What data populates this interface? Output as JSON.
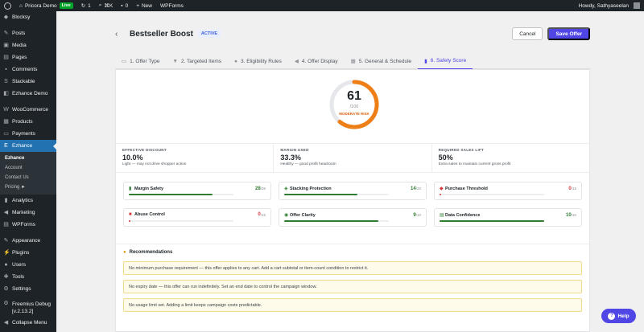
{
  "adminbar": {
    "site_name": "Pricora Demo",
    "live_badge": "Live",
    "updates_count": "1",
    "shortcut": "⌘K",
    "comments_count": "0",
    "new_label": "New",
    "plugin_link": "WPForms",
    "howdy": "Howdy, Sathyaseelan"
  },
  "sidebar": {
    "top": "Blocksy",
    "items1": [
      "Posts",
      "Media",
      "Pages",
      "Comments",
      "Stackable",
      "Ezhance Demo"
    ],
    "items2": [
      "WooCommerce",
      "Products",
      "Payments"
    ],
    "current": "Ezhance",
    "submenu": [
      "Ezhance",
      "Account",
      "Contact Us",
      "Pricing ►"
    ],
    "items3": [
      "Analytics",
      "Marketing",
      "WPForms"
    ],
    "items4": [
      "Appearance",
      "Plugins",
      "Users",
      "Tools",
      "Settings"
    ],
    "freemius": "Freemius Debug [v.2.13.2]",
    "collapse": "Collapse Menu"
  },
  "header": {
    "title": "Bestseller Boost",
    "status": "ACTIVE",
    "cancel_label": "Cancel",
    "save_label": "Save Offer"
  },
  "tabs": [
    "1. Offer Type",
    "2. Targeted Items",
    "3. Eligibility Rules",
    "4. Offer Display",
    "5. General & Schedule",
    "6. Safety Score"
  ],
  "score": {
    "value": "61",
    "of": "/100",
    "fraction": 0.61,
    "risk_label": "MODERATE RISK",
    "colors": {
      "arc": "#ee7f16",
      "track": "#e5e7eb"
    }
  },
  "metrics": [
    {
      "label": "EFFECTIVE DISCOUNT",
      "value": "10.0%",
      "desc": "Light — may not drive shopper action"
    },
    {
      "label": "MARGIN USED",
      "value": "33.3%",
      "desc": "Healthy — good profit headroom"
    },
    {
      "label": "REQUIRED SALES LIFT",
      "value": "50%",
      "desc": "Extra sales to maintain current gross profit"
    }
  ],
  "score_cards": [
    {
      "name": "Margin Safety",
      "value": "28",
      "max": "/35",
      "fraction": 0.8,
      "color": "#2e7d32",
      "icon": "chart-icon"
    },
    {
      "name": "Stacking Protection",
      "value": "14",
      "max": "/20",
      "fraction": 0.7,
      "color": "#2e7d32",
      "icon": "layers-icon"
    },
    {
      "name": "Purchase Threshold",
      "value": "0",
      "max": "/15",
      "fraction": 0.0,
      "color": "#d63638",
      "icon": "tag-icon"
    },
    {
      "name": "Abuse Control",
      "value": "0",
      "max": "/15",
      "fraction": 0.0,
      "color": "#d63638",
      "icon": "lock-icon"
    },
    {
      "name": "Offer Clarity",
      "value": "9",
      "max": "/10",
      "fraction": 0.9,
      "color": "#2e7d32",
      "icon": "eye-icon"
    },
    {
      "name": "Data Confidence",
      "value": "10",
      "max": "/10",
      "fraction": 1.0,
      "color": "#2e7d32",
      "icon": "database-icon"
    }
  ],
  "recommendations": {
    "title": "Recommendations",
    "items": [
      "No minimum purchase requirement — this offer applies to any cart. Add a cart subtotal or item-count condition to restrict it.",
      "No expiry date — this offer can run indefinitely. Set an end date to control the campaign window.",
      "No usage limit set. Adding a limit keeps campaign costs predictable."
    ]
  },
  "help_label": "Help"
}
